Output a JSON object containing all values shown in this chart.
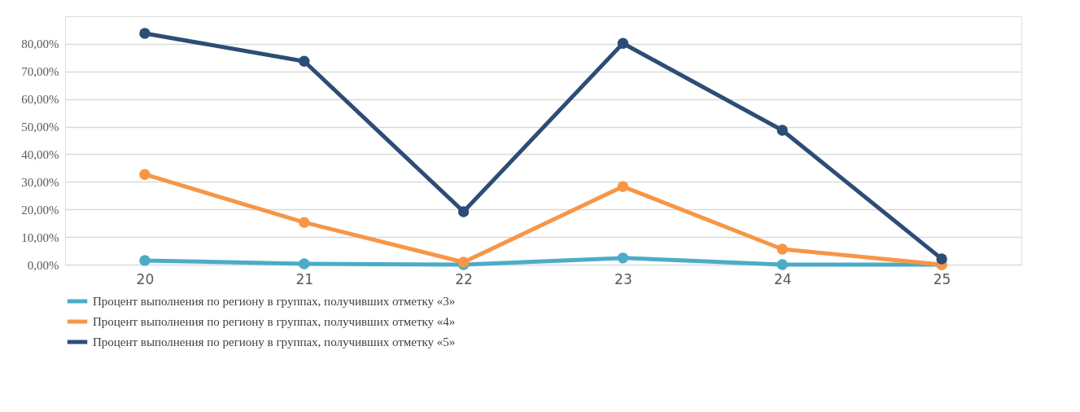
{
  "chart_data": {
    "type": "line",
    "categories": [
      "20",
      "21",
      "22",
      "23",
      "24",
      "25"
    ],
    "series": [
      {
        "name": "Процент выполнения по региону в группах, получивших отметку «3»",
        "color": "#4bacc6",
        "values": [
          1.5,
          0.3,
          0,
          2.4,
          0,
          0
        ]
      },
      {
        "name": "Процент выполнения по региону в группах, получивших отметку «4»",
        "color": "#f79646",
        "values": [
          32.7,
          15.3,
          0.9,
          28.3,
          5.6,
          0
        ]
      },
      {
        "name": "Процент выполнения по региону в группах, получивших отметку «5»",
        "color": "#2c4d75",
        "values": [
          83.8,
          73.7,
          19.2,
          80.2,
          48.7,
          2.1
        ]
      }
    ],
    "ylim": [
      0,
      90
    ],
    "yticks": [
      {
        "value": 0,
        "label": "0,00%"
      },
      {
        "value": 10,
        "label": "10,00%"
      },
      {
        "value": 20,
        "label": "20,00%"
      },
      {
        "value": 30,
        "label": "30,00%"
      },
      {
        "value": 40,
        "label": "40,00%"
      },
      {
        "value": 50,
        "label": "50,00%"
      },
      {
        "value": 60,
        "label": "60,00%"
      },
      {
        "value": 70,
        "label": "70,00%"
      },
      {
        "value": 80,
        "label": "80,00%"
      }
    ],
    "grid": "y",
    "legend": "bottom",
    "marker": "circle",
    "line_style": "solid"
  }
}
